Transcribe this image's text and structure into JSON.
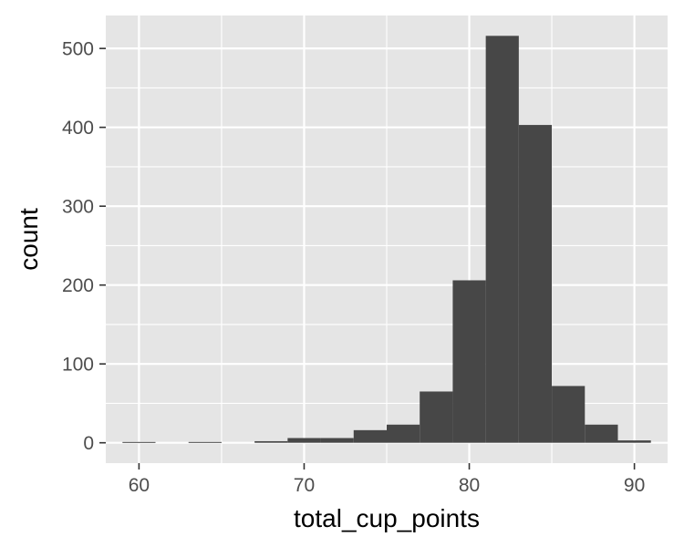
{
  "chart_data": {
    "type": "bar",
    "subtype": "histogram",
    "xlabel": "total_cup_points",
    "ylabel": "count",
    "x_ticks": [
      60,
      70,
      80,
      90
    ],
    "y_ticks": [
      0,
      100,
      200,
      300,
      400,
      500
    ],
    "xlim": [
      57.99,
      92.01
    ],
    "ylim": [
      -25.8,
      541.8
    ],
    "grid": true,
    "legend": "none",
    "bins": [
      {
        "x0": 59.0,
        "x1": 61.0,
        "count": 1
      },
      {
        "x0": 61.0,
        "x1": 63.0,
        "count": 0
      },
      {
        "x0": 63.0,
        "x1": 65.0,
        "count": 1
      },
      {
        "x0": 65.0,
        "x1": 67.0,
        "count": 0
      },
      {
        "x0": 67.0,
        "x1": 69.0,
        "count": 2
      },
      {
        "x0": 69.0,
        "x1": 71.0,
        "count": 6
      },
      {
        "x0": 71.0,
        "x1": 73.0,
        "count": 6
      },
      {
        "x0": 73.0,
        "x1": 75.0,
        "count": 16
      },
      {
        "x0": 75.0,
        "x1": 77.0,
        "count": 23
      },
      {
        "x0": 77.0,
        "x1": 79.0,
        "count": 65
      },
      {
        "x0": 79.0,
        "x1": 81.0,
        "count": 206
      },
      {
        "x0": 81.0,
        "x1": 83.0,
        "count": 516
      },
      {
        "x0": 83.0,
        "x1": 85.0,
        "count": 403
      },
      {
        "x0": 85.0,
        "x1": 87.0,
        "count": 72
      },
      {
        "x0": 87.0,
        "x1": 89.0,
        "count": 23
      },
      {
        "x0": 89.0,
        "x1": 91.0,
        "count": 3
      }
    ]
  },
  "colors": {
    "panel": "#e5e5e5",
    "grid_major": "#ffffff",
    "bar_fill": "#474747",
    "tick_text": "#4d4d4d",
    "tick_mark": "#333333"
  }
}
